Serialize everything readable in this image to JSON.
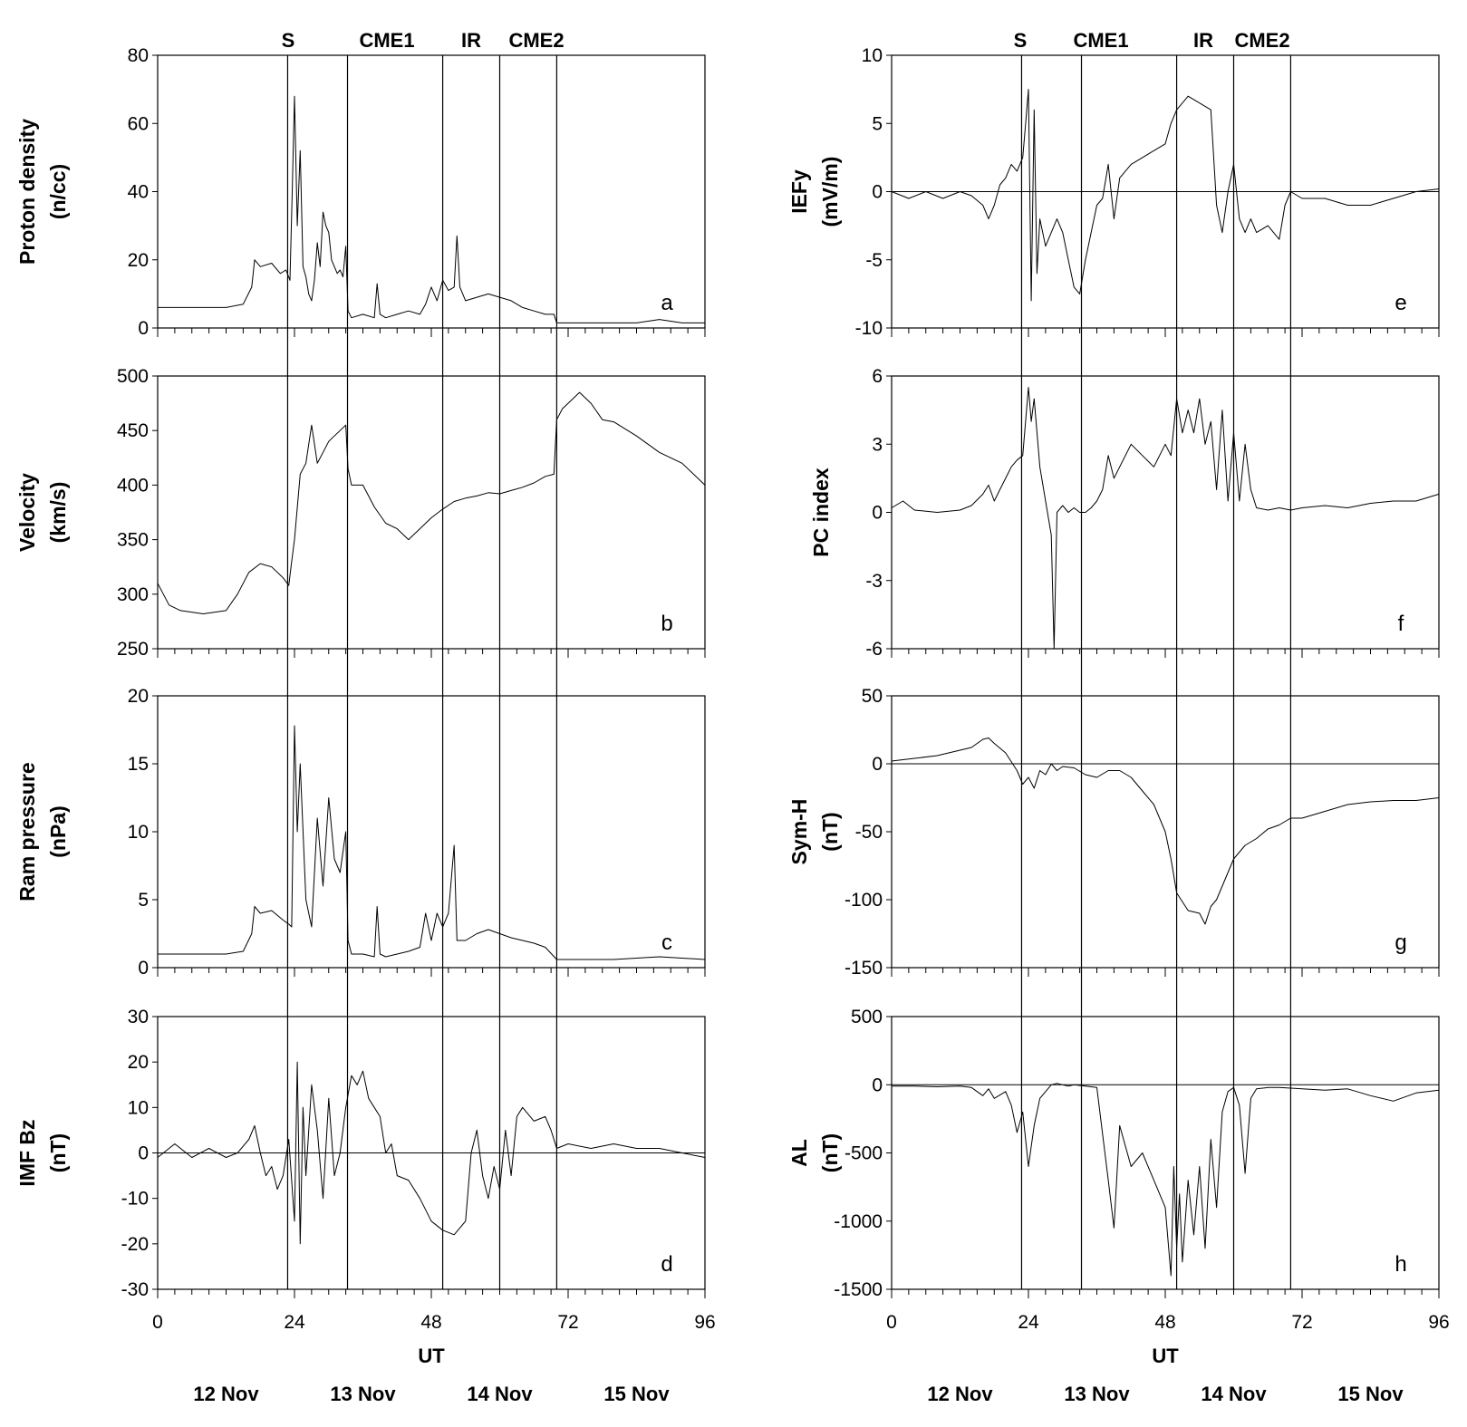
{
  "x_axis": {
    "label": "UT",
    "range": [
      0,
      96
    ],
    "major_ticks": [
      0,
      24,
      48,
      72,
      96
    ],
    "minor_tick_step": 3,
    "date_labels": [
      "12 Nov",
      "13 Nov",
      "14 Nov",
      "15 Nov"
    ]
  },
  "events": [
    {
      "label": "S",
      "x": 22.8
    },
    {
      "label": "CME1",
      "x": 33.3
    },
    {
      "label": "IR",
      "x": 50.0
    },
    {
      "label": "CME2",
      "x": 60.0
    },
    {
      "label": "",
      "x": 70.0
    }
  ],
  "chart_data": [
    {
      "id": "a",
      "type": "line",
      "letter": "a",
      "ylabel": [
        "Proton density",
        "(n/cc)"
      ],
      "ylim": [
        0,
        80
      ],
      "yticks": [
        0,
        20,
        40,
        60,
        80
      ],
      "zero_line": false,
      "x": [
        0,
        4,
        8,
        12,
        15,
        16.5,
        17,
        18,
        20,
        21.5,
        22.5,
        23.2,
        23.6,
        24,
        24.5,
        25,
        25.5,
        26,
        26.5,
        27,
        27.5,
        28,
        28.5,
        29,
        29.5,
        30,
        30.5,
        31,
        31.5,
        32,
        32.5,
        33,
        33.4,
        34,
        36,
        38,
        38.5,
        39,
        40,
        42,
        44,
        46,
        47,
        48,
        49,
        50,
        51,
        52,
        52.5,
        53,
        54,
        56,
        58,
        60,
        62,
        64,
        66,
        68,
        69.5,
        70,
        72,
        76,
        80,
        84,
        88,
        92,
        96
      ],
      "y": [
        6,
        6,
        6,
        6,
        7,
        12,
        20,
        18,
        19,
        16,
        17,
        14,
        40,
        68,
        30,
        52,
        18,
        15,
        10,
        8,
        14,
        25,
        18,
        34,
        30,
        28,
        20,
        18,
        16,
        17,
        15,
        24,
        5,
        3,
        4,
        3,
        13,
        4,
        3,
        4,
        5,
        4,
        7,
        12,
        8,
        14,
        11,
        12,
        27,
        12,
        8,
        9,
        10,
        9,
        8,
        6,
        5,
        4,
        4,
        1.5,
        1.5,
        1.5,
        1.5,
        1.5,
        2.5,
        1.5,
        1.5
      ]
    },
    {
      "id": "b",
      "type": "line",
      "letter": "b",
      "ylabel": [
        "Velocity",
        "(km/s)"
      ],
      "ylim": [
        250,
        500
      ],
      "yticks": [
        250,
        300,
        350,
        400,
        450,
        500
      ],
      "zero_line": false,
      "x": [
        0,
        2,
        4,
        8,
        12,
        14,
        16,
        18,
        20,
        22,
        23,
        23.5,
        24,
        25,
        26,
        27,
        28,
        29,
        30,
        31,
        32,
        33,
        33.4,
        34,
        36,
        38,
        40,
        42,
        44,
        46,
        48,
        50,
        52,
        54,
        56,
        58,
        60,
        62,
        64,
        66,
        68,
        69.5,
        70,
        71,
        72,
        74,
        76,
        78,
        80,
        84,
        88,
        92,
        96
      ],
      "y": [
        310,
        290,
        285,
        282,
        285,
        300,
        320,
        328,
        325,
        315,
        308,
        330,
        350,
        410,
        420,
        455,
        420,
        430,
        440,
        445,
        450,
        455,
        415,
        400,
        400,
        380,
        365,
        360,
        350,
        360,
        370,
        378,
        385,
        388,
        390,
        393,
        392,
        395,
        398,
        402,
        408,
        410,
        460,
        470,
        475,
        485,
        475,
        460,
        458,
        445,
        430,
        420,
        400
      ]
    },
    {
      "id": "c",
      "type": "line",
      "letter": "c",
      "ylabel": [
        "Ram pressure",
        "(nPa)"
      ],
      "ylim": [
        0,
        20
      ],
      "yticks": [
        0,
        5,
        10,
        15,
        20
      ],
      "zero_line": false,
      "x": [
        0,
        4,
        8,
        12,
        15,
        16.5,
        17,
        18,
        20,
        22,
        23,
        23.5,
        24,
        24.5,
        25,
        26,
        27,
        28,
        29,
        30,
        31,
        32,
        33,
        33.4,
        34,
        36,
        38,
        38.5,
        39,
        40,
        42,
        44,
        46,
        47,
        48,
        49,
        50,
        51,
        52,
        52.5,
        53,
        54,
        56,
        58,
        60,
        62,
        64,
        66,
        68,
        70,
        72,
        80,
        88,
        96
      ],
      "y": [
        1,
        1,
        1,
        1,
        1.2,
        2.5,
        4.5,
        4,
        4.2,
        3.5,
        3.2,
        3,
        17.8,
        10,
        15,
        5,
        3,
        11,
        6,
        12.5,
        8,
        7,
        10,
        2,
        1,
        1,
        0.8,
        4.5,
        1,
        0.8,
        1,
        1.2,
        1.5,
        4,
        2,
        4,
        3,
        4,
        9,
        2,
        2,
        2,
        2.5,
        2.8,
        2.5,
        2.2,
        2,
        1.8,
        1.5,
        0.6,
        0.6,
        0.6,
        0.8,
        0.6
      ]
    },
    {
      "id": "d",
      "type": "line",
      "letter": "d",
      "ylabel": [
        "IMF Bz",
        "(nT)"
      ],
      "ylim": [
        -30,
        30
      ],
      "yticks": [
        -30,
        -20,
        -10,
        0,
        10,
        20,
        30
      ],
      "zero_line": true,
      "x": [
        0,
        3,
        6,
        9,
        12,
        14,
        16,
        17,
        18,
        19,
        20,
        21,
        22,
        23,
        24,
        24.5,
        25,
        25.5,
        26,
        27,
        28,
        29,
        30,
        31,
        32,
        33,
        34,
        35,
        36,
        37,
        38,
        39,
        40,
        41,
        42,
        44,
        46,
        48,
        50,
        52,
        54,
        55,
        56,
        57,
        58,
        59,
        60,
        61,
        62,
        63,
        64,
        66,
        68,
        69,
        70,
        72,
        76,
        80,
        84,
        88,
        92,
        96
      ],
      "y": [
        -1,
        2,
        -1,
        1,
        -1,
        0,
        3,
        6,
        0,
        -5,
        -3,
        -8,
        -5,
        3,
        -15,
        20,
        -20,
        10,
        -5,
        15,
        5,
        -10,
        12,
        -5,
        0,
        10,
        17,
        15,
        18,
        12,
        10,
        8,
        0,
        2,
        -5,
        -6,
        -10,
        -15,
        -17,
        -18,
        -15,
        0,
        5,
        -5,
        -10,
        -3,
        -8,
        5,
        -5,
        8,
        10,
        7,
        8,
        5,
        1,
        2,
        1,
        2,
        1,
        1,
        0,
        -1
      ]
    },
    {
      "id": "e",
      "type": "line",
      "letter": "e",
      "ylabel": [
        "IEFy",
        "(mV/m)"
      ],
      "ylim": [
        -10,
        10
      ],
      "yticks": [
        -10,
        -5,
        0,
        5,
        10
      ],
      "zero_line": true,
      "x": [
        0,
        3,
        6,
        9,
        12,
        14,
        16,
        17,
        18,
        19,
        20,
        21,
        22,
        23,
        23.5,
        24,
        24.5,
        25,
        25.5,
        26,
        27,
        28,
        29,
        30,
        31,
        32,
        33,
        34,
        35,
        36,
        37,
        38,
        39,
        40,
        42,
        44,
        46,
        48,
        49,
        50,
        52,
        54,
        56,
        57,
        58,
        59,
        60,
        61,
        62,
        63,
        64,
        66,
        68,
        69,
        70,
        72,
        76,
        80,
        84,
        88,
        92,
        96
      ],
      "y": [
        0,
        -0.5,
        0,
        -0.5,
        0,
        -0.3,
        -1,
        -2,
        -1,
        0.5,
        1,
        2,
        1.5,
        2.5,
        5,
        7.5,
        -8,
        6,
        -6,
        -2,
        -4,
        -3,
        -2,
        -3,
        -5,
        -7,
        -7.5,
        -5,
        -3,
        -1,
        -0.5,
        2,
        -2,
        1,
        2,
        2.5,
        3,
        3.5,
        5,
        6,
        7,
        6.5,
        6,
        -1,
        -3,
        0,
        2,
        -2,
        -3,
        -2,
        -3,
        -2.5,
        -3.5,
        -1,
        0,
        -0.5,
        -0.5,
        -1,
        -1,
        -0.5,
        0,
        0.2
      ]
    },
    {
      "id": "f",
      "type": "line",
      "letter": "f",
      "ylabel": [
        "PC index"
      ],
      "ylim": [
        -6,
        6
      ],
      "yticks": [
        -6,
        -3,
        0,
        3,
        6
      ],
      "zero_line": false,
      "x": [
        0,
        2,
        4,
        8,
        12,
        14,
        16,
        17,
        18,
        19,
        20,
        21,
        22,
        23,
        24,
        24.5,
        25,
        26,
        27,
        28,
        28.5,
        29,
        30,
        31,
        32,
        33,
        34,
        35,
        36,
        37,
        38,
        39,
        40,
        42,
        44,
        46,
        48,
        49,
        50,
        51,
        52,
        53,
        54,
        55,
        56,
        57,
        58,
        59,
        60,
        61,
        62,
        63,
        64,
        66,
        68,
        70,
        72,
        76,
        80,
        84,
        88,
        92,
        96
      ],
      "y": [
        0.2,
        0.5,
        0.1,
        0,
        0.1,
        0.3,
        0.8,
        1.2,
        0.5,
        1,
        1.5,
        2,
        2.3,
        2.5,
        5.5,
        4,
        5,
        2,
        0.5,
        -1,
        -6,
        0,
        0.3,
        0,
        0.2,
        0,
        0,
        0.2,
        0.5,
        1,
        2.5,
        1.5,
        2,
        3,
        2.5,
        2,
        3,
        2.5,
        5,
        3.5,
        4.5,
        3.5,
        5,
        3,
        4,
        1,
        4.5,
        0.5,
        3.5,
        0.5,
        3,
        1,
        0.2,
        0.1,
        0.2,
        0.1,
        0.2,
        0.3,
        0.2,
        0.4,
        0.5,
        0.5,
        0.8
      ]
    },
    {
      "id": "g",
      "type": "line",
      "letter": "g",
      "ylabel": [
        "Sym-H",
        "(nT)"
      ],
      "ylim": [
        -150,
        50
      ],
      "yticks": [
        -150,
        -100,
        -50,
        0,
        50
      ],
      "zero_line": true,
      "x": [
        0,
        4,
        8,
        12,
        14,
        16,
        17,
        18,
        20,
        22,
        23,
        24,
        25,
        26,
        27,
        28,
        29,
        30,
        32,
        34,
        36,
        38,
        40,
        42,
        44,
        46,
        47,
        48,
        49,
        50,
        52,
        54,
        55,
        56,
        57,
        58,
        59,
        60,
        62,
        64,
        66,
        68,
        70,
        72,
        76,
        80,
        84,
        88,
        92,
        96
      ],
      "y": [
        2,
        4,
        6,
        10,
        12,
        18,
        19,
        15,
        8,
        -5,
        -15,
        -10,
        -18,
        -5,
        -8,
        0,
        -5,
        -2,
        -3,
        -8,
        -10,
        -5,
        -5,
        -10,
        -20,
        -30,
        -40,
        -50,
        -70,
        -95,
        -108,
        -110,
        -118,
        -105,
        -100,
        -90,
        -80,
        -70,
        -60,
        -55,
        -48,
        -45,
        -40,
        -40,
        -35,
        -30,
        -28,
        -27,
        -27,
        -25
      ]
    },
    {
      "id": "h",
      "type": "line",
      "letter": "h",
      "ylabel": [
        "AL",
        "(nT)"
      ],
      "ylim": [
        -1500,
        500
      ],
      "yticks": [
        -1500,
        -1000,
        -500,
        0,
        500
      ],
      "zero_line": true,
      "x": [
        0,
        4,
        8,
        12,
        14,
        16,
        17,
        18,
        20,
        21,
        22,
        23,
        24,
        25,
        26,
        27,
        28,
        29,
        30,
        31,
        32,
        34,
        36,
        38,
        39,
        40,
        42,
        44,
        46,
        48,
        49,
        49.5,
        50,
        50.5,
        51,
        52,
        53,
        54,
        55,
        56,
        57,
        58,
        59,
        60,
        61,
        62,
        63,
        64,
        66,
        68,
        70,
        72,
        76,
        80,
        84,
        88,
        92,
        96
      ],
      "y": [
        -10,
        -10,
        -15,
        -10,
        -20,
        -80,
        -30,
        -100,
        -50,
        -150,
        -350,
        -200,
        -600,
        -300,
        -100,
        -50,
        0,
        10,
        0,
        -10,
        0,
        -10,
        -20,
        -700,
        -1050,
        -300,
        -600,
        -500,
        -700,
        -900,
        -1400,
        -600,
        -1200,
        -800,
        -1300,
        -700,
        -1100,
        -600,
        -1200,
        -400,
        -900,
        -200,
        -50,
        -20,
        -150,
        -650,
        -100,
        -30,
        -20,
        -20,
        -25,
        -30,
        -40,
        -30,
        -80,
        -120,
        -60,
        -40
      ]
    }
  ]
}
